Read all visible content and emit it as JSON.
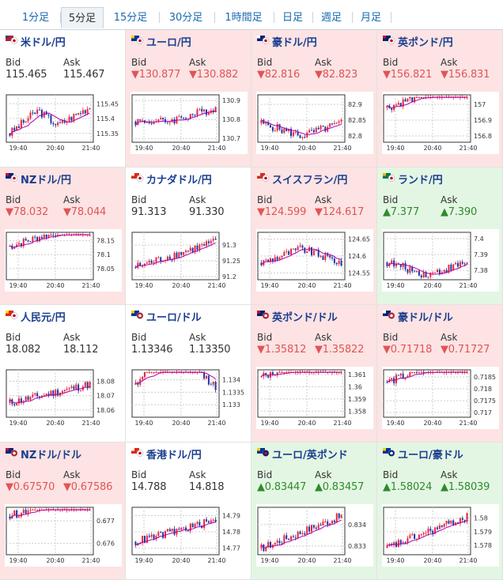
{
  "tabs": [
    {
      "label": "1分足",
      "active": false
    },
    {
      "label": "5分足",
      "active": true
    },
    {
      "label": "15分足",
      "active": false
    },
    {
      "label": "30分足",
      "active": false
    },
    {
      "label": "1時間足",
      "active": false
    },
    {
      "label": "日足",
      "active": false
    },
    {
      "label": "週足",
      "active": false
    },
    {
      "label": "月足",
      "active": false
    }
  ],
  "labels": {
    "bid": "Bid",
    "ask": "Ask"
  },
  "time_ticks": [
    "19:40",
    "20:40",
    "21:40"
  ],
  "colors": {
    "down_bg": "#fde3e3",
    "up_bg": "#e3f6e3",
    "down_text": "#e05555",
    "up_text": "#2e8b2e",
    "bull_candle": "#e8283c",
    "bear_candle": "#1c3aa0",
    "ma_line": "#b000b0"
  },
  "pairs": [
    {
      "name": "米ドル/円",
      "flag": "us-jp-flag-icon",
      "status": "neutral",
      "bid": "115.465",
      "ask": "115.467",
      "chart_data": {
        "type": "candlestick",
        "yticks": [
          "115.45",
          "115.4",
          "115.35"
        ],
        "ylim": [
          115.32,
          115.48
        ],
        "start": 115.35,
        "end": 115.44,
        "shape": "rise-dip-rise"
      }
    },
    {
      "name": "ユーロ/円",
      "flag": "eu-jp-flag-icon",
      "status": "down",
      "bid": "▼130.877",
      "ask": "▼130.882",
      "chart_data": {
        "type": "candlestick",
        "yticks": [
          "130.9",
          "130.8",
          "130.7"
        ],
        "ylim": [
          130.68,
          130.93
        ],
        "start": 130.79,
        "end": 130.86,
        "shape": "flat-rise"
      }
    },
    {
      "name": "豪ドル/円",
      "flag": "au-jp-flag-icon",
      "status": "down",
      "bid": "▼82.816",
      "ask": "▼82.823",
      "chart_data": {
        "type": "candlestick",
        "yticks": [
          "82.9",
          "82.85",
          "82.8"
        ],
        "ylim": [
          82.78,
          82.93
        ],
        "start": 82.84,
        "end": 82.8,
        "shape": "rise-fall"
      }
    },
    {
      "name": "英ポンド/円",
      "flag": "gb-jp-flag-icon",
      "status": "down",
      "bid": "▼156.821",
      "ask": "▼156.831",
      "chart_data": {
        "type": "candlestick",
        "yticks": [
          "157",
          "156.9",
          "156.8"
        ],
        "ylim": [
          156.76,
          157.06
        ],
        "start": 156.98,
        "end": 156.8,
        "shape": "fall"
      }
    },
    {
      "name": "NZドル/円",
      "flag": "nz-jp-flag-icon",
      "status": "down",
      "bid": "▼78.032",
      "ask": "▼78.044",
      "chart_data": {
        "type": "candlestick",
        "yticks": [
          "78.15",
          "78.1",
          "78.05"
        ],
        "ylim": [
          78.01,
          78.18
        ],
        "start": 78.13,
        "end": 78.04,
        "shape": "fall"
      }
    },
    {
      "name": "カナダドル/円",
      "flag": "ca-jp-flag-icon",
      "status": "neutral",
      "bid": "91.313",
      "ask": "91.330",
      "chart_data": {
        "type": "candlestick",
        "yticks": [
          "91.3",
          "91.25",
          "91.2"
        ],
        "ylim": [
          91.19,
          91.34
        ],
        "start": 91.23,
        "end": 91.31,
        "shape": "rise"
      }
    },
    {
      "name": "スイスフラン/円",
      "flag": "ch-jp-flag-icon",
      "status": "down",
      "bid": "▼124.599",
      "ask": "▼124.617",
      "chart_data": {
        "type": "candlestick",
        "yticks": [
          "124.65",
          "124.6",
          "124.55"
        ],
        "ylim": [
          124.53,
          124.67
        ],
        "start": 124.58,
        "end": 124.58,
        "shape": "rise-fall"
      }
    },
    {
      "name": "ランド/円",
      "flag": "za-jp-flag-icon",
      "status": "up",
      "bid": "▲7.377",
      "ask": "▲7.390",
      "chart_data": {
        "type": "candlestick",
        "yticks": [
          "7.4",
          "7.39",
          "7.38"
        ],
        "ylim": [
          7.374,
          7.404
        ],
        "start": 7.385,
        "end": 7.377,
        "shape": "rise-fall"
      }
    },
    {
      "name": "人民元/円",
      "flag": "cn-jp-flag-icon",
      "status": "neutral",
      "bid": "18.082",
      "ask": "18.112",
      "chart_data": {
        "type": "candlestick",
        "yticks": [
          "18.08",
          "18.07",
          "18.06"
        ],
        "ylim": [
          18.055,
          18.088
        ],
        "start": 18.065,
        "end": 18.078,
        "shape": "rise"
      }
    },
    {
      "name": "ユーロ/ドル",
      "flag": "eu-us-flag-icon",
      "status": "neutral",
      "bid": "1.13346",
      "ask": "1.13350",
      "chart_data": {
        "type": "candlestick",
        "yticks": [
          "1.134",
          "1.1335",
          "1.133"
        ],
        "ylim": [
          1.1325,
          1.1344
        ],
        "start": 1.1338,
        "end": 1.1334,
        "shape": "dip-rise"
      }
    },
    {
      "name": "英ポンド/ドル",
      "flag": "gb-us-flag-icon",
      "status": "down",
      "bid": "▼1.35812",
      "ask": "▼1.35822",
      "chart_data": {
        "type": "candlestick",
        "yticks": [
          "1.361",
          "1.36",
          "1.359",
          "1.358"
        ],
        "ylim": [
          1.3575,
          1.3614
        ],
        "start": 1.3608,
        "end": 1.3581,
        "shape": "fall"
      }
    },
    {
      "name": "豪ドル/ドル",
      "flag": "au-us-flag-icon",
      "status": "down",
      "bid": "▼0.71718",
      "ask": "▼0.71727",
      "chart_data": {
        "type": "candlestick",
        "yticks": [
          "0.7185",
          "0.718",
          "0.7175",
          "0.717"
        ],
        "ylim": [
          0.7168,
          0.7188
        ],
        "start": 0.7183,
        "end": 0.7172,
        "shape": "fall"
      }
    },
    {
      "name": "NZドル/ドル",
      "flag": "nz-us-flag-icon",
      "status": "down",
      "bid": "▼0.67570",
      "ask": "▼0.67586",
      "chart_data": {
        "type": "candlestick",
        "yticks": [
          "0.677",
          "0.676"
        ],
        "ylim": [
          0.6755,
          0.6776
        ],
        "start": 0.6772,
        "end": 0.6757,
        "shape": "fall"
      }
    },
    {
      "name": "香港ドル/円",
      "flag": "hk-jp-flag-icon",
      "status": "neutral",
      "bid": "14.788",
      "ask": "14.818",
      "chart_data": {
        "type": "candlestick",
        "yticks": [
          "14.79",
          "14.78",
          "14.77"
        ],
        "ylim": [
          14.766,
          14.795
        ],
        "start": 14.774,
        "end": 14.787,
        "shape": "rise"
      }
    },
    {
      "name": "ユーロ/英ポンド",
      "flag": "eu-gb-flag-icon",
      "status": "up",
      "bid": "▲0.83447",
      "ask": "▲0.83457",
      "chart_data": {
        "type": "candlestick",
        "yticks": [
          "0.834",
          "0.833"
        ],
        "ylim": [
          0.8326,
          0.8348
        ],
        "start": 0.8329,
        "end": 0.8344,
        "shape": "rise"
      }
    },
    {
      "name": "ユーロ/豪ドル",
      "flag": "eu-au-flag-icon",
      "status": "up",
      "bid": "▲1.58024",
      "ask": "▲1.58039",
      "chart_data": {
        "type": "candlestick",
        "yticks": [
          "1.58",
          "1.579",
          "1.578"
        ],
        "ylim": [
          1.5773,
          1.5808
        ],
        "start": 1.5778,
        "end": 1.5801,
        "shape": "rise"
      }
    }
  ]
}
